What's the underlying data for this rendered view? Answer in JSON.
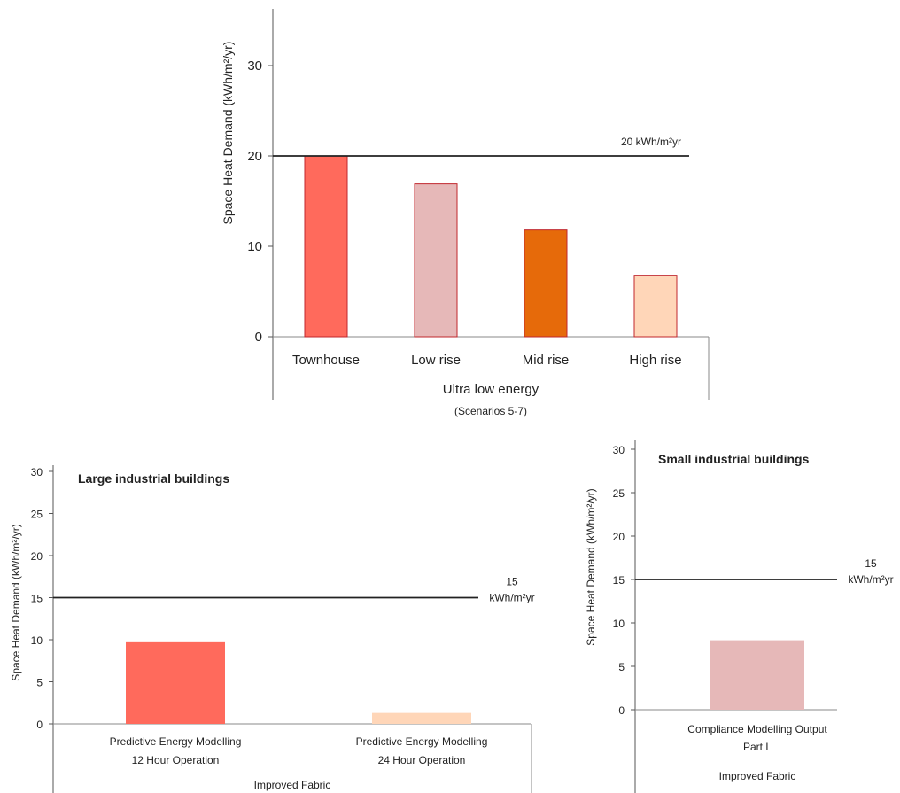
{
  "chart_data": [
    {
      "type": "bar",
      "title": "",
      "ylabel": "Space Heat Demand (kWh/m²/yr)",
      "ylim": [
        0,
        35
      ],
      "yticks": [
        0,
        10,
        20,
        30
      ],
      "categories": [
        "Townhouse",
        "Low rise",
        "Mid rise",
        "High rise"
      ],
      "group_label": "Ultra low energy",
      "group_sublabel": "(Scenarios 5-7)",
      "values": [
        20,
        16.9,
        11.8,
        6.8
      ],
      "colors": [
        "#ff6a5c",
        "#e6b8b8",
        "#e66a0a",
        "#ffd6b8"
      ],
      "bar_edge_color": "#c0272d",
      "reference_line": {
        "value": 20,
        "label": "20 kWh/m²yr"
      },
      "grid": false
    },
    {
      "type": "bar",
      "title": "Large industrial buildings",
      "ylabel": "Space Heat Demand (kWh/m²/yr)",
      "ylim": [
        0,
        30
      ],
      "yticks": [
        0,
        5,
        10,
        15,
        20,
        25,
        30
      ],
      "categories": [
        [
          "Predictive Energy Modelling",
          "12 Hour Operation"
        ],
        [
          "Predictive Energy Modelling",
          "24 Hour Operation"
        ]
      ],
      "group_label": "Improved Fabric",
      "values": [
        9.7,
        1.3
      ],
      "colors": [
        "#ff6a5c",
        "#ffd6b8"
      ],
      "reference_line": {
        "value": 15,
        "label": [
          "15",
          "kWh/m²yr"
        ]
      },
      "grid": false
    },
    {
      "type": "bar",
      "title": "Small industrial buildings",
      "ylabel": "Space Heat Demand (kWh/m²/yr)",
      "ylim": [
        0,
        30
      ],
      "yticks": [
        0,
        5,
        10,
        15,
        20,
        25,
        30
      ],
      "categories": [
        [
          "Compliance Modelling Output",
          "Part L"
        ]
      ],
      "group_label": "Improved Fabric",
      "values": [
        8.0
      ],
      "colors": [
        "#e6b8b8"
      ],
      "reference_line": {
        "value": 15,
        "label": [
          "15",
          "kWh/m²yr"
        ]
      },
      "grid": false
    }
  ]
}
